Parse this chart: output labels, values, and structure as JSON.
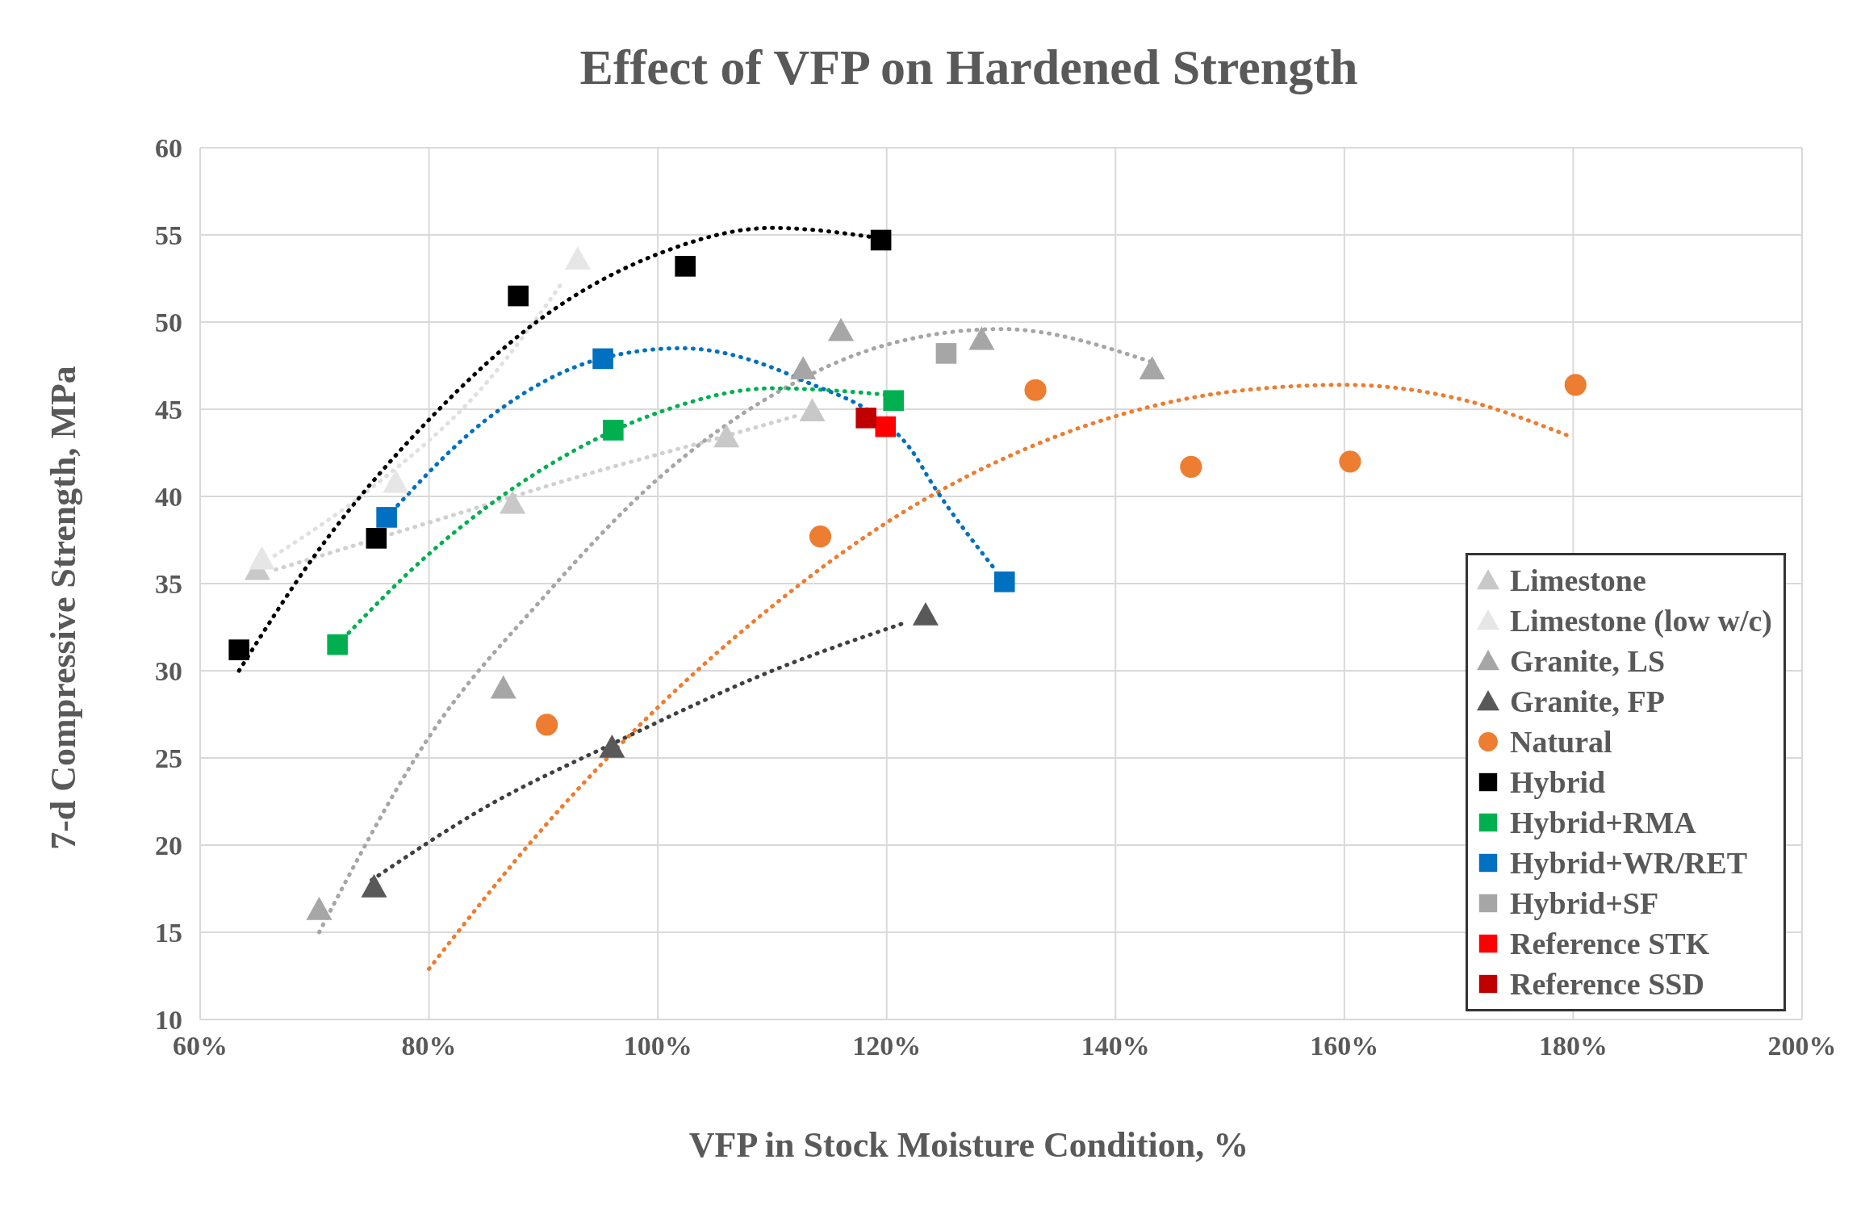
{
  "chart_data": {
    "type": "scatter",
    "title": "Effect of VFP on Hardened Strength",
    "xlabel": "VFP in Stock Moisture Condition, %",
    "ylabel": "7-d Compressive Strength, MPa",
    "xlim": [
      60,
      200
    ],
    "xticks": [
      {
        "value": 60,
        "label": "60%"
      },
      {
        "value": 80,
        "label": "80%"
      },
      {
        "value": 100,
        "label": "100%"
      },
      {
        "value": 120,
        "label": "120%"
      },
      {
        "value": 140,
        "label": "140%"
      },
      {
        "value": 160,
        "label": "160%"
      },
      {
        "value": 180,
        "label": "180%"
      },
      {
        "value": 200,
        "label": "200%"
      }
    ],
    "ylim": [
      10,
      60
    ],
    "yticks": [
      10,
      15,
      20,
      25,
      30,
      35,
      40,
      45,
      50,
      55,
      60
    ],
    "grid": true,
    "legend": "bottom right",
    "series": [
      {
        "type": "line",
        "color": "#d0d0d0",
        "line_style": "dotted",
        "marker": "none",
        "x": [
          66.6,
          80,
          95,
          105,
          112
        ],
        "values": [
          35.8,
          38.5,
          41.5,
          43.3,
          44.6
        ]
      },
      {
        "type": "line",
        "color": "#e0e0e0",
        "line_style": "dotted",
        "marker": "none",
        "x": [
          66.5,
          75,
          85,
          91.8
        ],
        "values": [
          36.6,
          40.5,
          46.5,
          52.4
        ]
      },
      {
        "type": "line",
        "color": "#a6a6a6",
        "line_style": "dotted",
        "marker": "none",
        "x": [
          70.4,
          80,
          90,
          100,
          110,
          120,
          130,
          143.2
        ],
        "values": [
          15.0,
          26.2,
          34.2,
          41.0,
          45.8,
          48.7,
          49.6,
          47.7
        ]
      },
      {
        "type": "line",
        "color": "#404040",
        "line_style": "dotted",
        "marker": "none",
        "x": [
          75,
          85,
          96,
          110,
          121.8
        ],
        "values": [
          18.0,
          22.2,
          25.8,
          30.0,
          32.8
        ]
      },
      {
        "type": "line",
        "color": "#ed7d31",
        "line_style": "dotted",
        "marker": "none",
        "x": [
          80,
          90,
          100,
          110,
          120,
          130,
          140,
          150,
          160,
          170,
          179.5
        ],
        "values": [
          12.9,
          21.0,
          27.9,
          33.7,
          38.5,
          42.1,
          44.6,
          46.0,
          46.4,
          45.6,
          43.5
        ]
      },
      {
        "type": "line",
        "color": "#000000",
        "line_style": "dotted",
        "marker": "none",
        "x": [
          63.4,
          70,
          80,
          90,
          100,
          110,
          119.5
        ],
        "values": [
          30.0,
          36.6,
          44.4,
          50.3,
          53.9,
          55.4,
          54.8
        ]
      },
      {
        "type": "line",
        "color": "#00b050",
        "line_style": "dotted",
        "marker": "none",
        "x": [
          72,
          80,
          90,
          100,
          110,
          120.6
        ],
        "values": [
          31.5,
          36.7,
          41.6,
          44.8,
          46.2,
          45.8
        ]
      },
      {
        "type": "line",
        "color": "#0070c0",
        "line_style": "dotted",
        "marker": "none",
        "x": [
          76.3,
          85,
          95,
          102,
          112.5,
          122,
          124,
          129.6
        ],
        "values": [
          38.8,
          44.4,
          47.9,
          48.5,
          46.7,
          42.8,
          40.7,
          35.7
        ]
      },
      {
        "name": "Limestone",
        "color": "#c8c8c8",
        "marker": "triangle",
        "x": [
          65.0,
          87.3,
          106.0,
          113.5
        ],
        "values": [
          35.8,
          39.6,
          43.4,
          44.9
        ]
      },
      {
        "name": "Limestone (low w/c)",
        "color": "#e6e6e6",
        "marker": "triangle",
        "x": [
          65.4,
          77.1,
          93.0
        ],
        "values": [
          36.4,
          40.8,
          53.6
        ]
      },
      {
        "name": "Granite, LS",
        "color": "#a6a6a6",
        "marker": "triangle",
        "x": [
          70.4,
          86.5,
          112.7,
          116.0,
          128.3,
          143.2
        ],
        "values": [
          16.3,
          29.0,
          47.3,
          49.5,
          49.0,
          47.3
        ]
      },
      {
        "name": "Granite, FP",
        "color": "#595959",
        "marker": "triangle",
        "x": [
          75.2,
          96.0,
          123.4
        ],
        "values": [
          17.6,
          25.6,
          33.2
        ]
      },
      {
        "name": "Natural",
        "color": "#ed7d31",
        "marker": "circle",
        "x": [
          90.3,
          114.2,
          133.0,
          146.6,
          160.5,
          180.2
        ],
        "values": [
          26.9,
          37.7,
          46.1,
          41.7,
          42.0,
          46.4
        ]
      },
      {
        "name": "Hybrid",
        "color": "#000000",
        "marker": "square",
        "x": [
          63.4,
          75.4,
          87.8,
          102.4,
          119.5
        ],
        "values": [
          31.2,
          37.6,
          51.5,
          53.2,
          54.7
        ]
      },
      {
        "name": "Hybrid+RMA",
        "color": "#00b050",
        "marker": "square",
        "x": [
          72.0,
          96.1,
          120.6
        ],
        "values": [
          31.5,
          43.8,
          45.5
        ]
      },
      {
        "name": "Hybrid+WR/RET",
        "color": "#0070c0",
        "marker": "square",
        "x": [
          76.3,
          95.2,
          130.3
        ],
        "values": [
          38.8,
          47.9,
          35.1
        ]
      },
      {
        "name": "Hybrid+SF",
        "color": "#a6a6a6",
        "marker": "square",
        "x": [
          125.2
        ],
        "values": [
          48.2
        ]
      },
      {
        "name": "Reference STK",
        "color": "#ff0000",
        "marker": "square",
        "x": [
          119.9
        ],
        "values": [
          44.0
        ]
      },
      {
        "name": "Reference SSD",
        "color": "#c00000",
        "marker": "square",
        "x": [
          118.2
        ],
        "values": [
          44.5
        ]
      }
    ]
  }
}
